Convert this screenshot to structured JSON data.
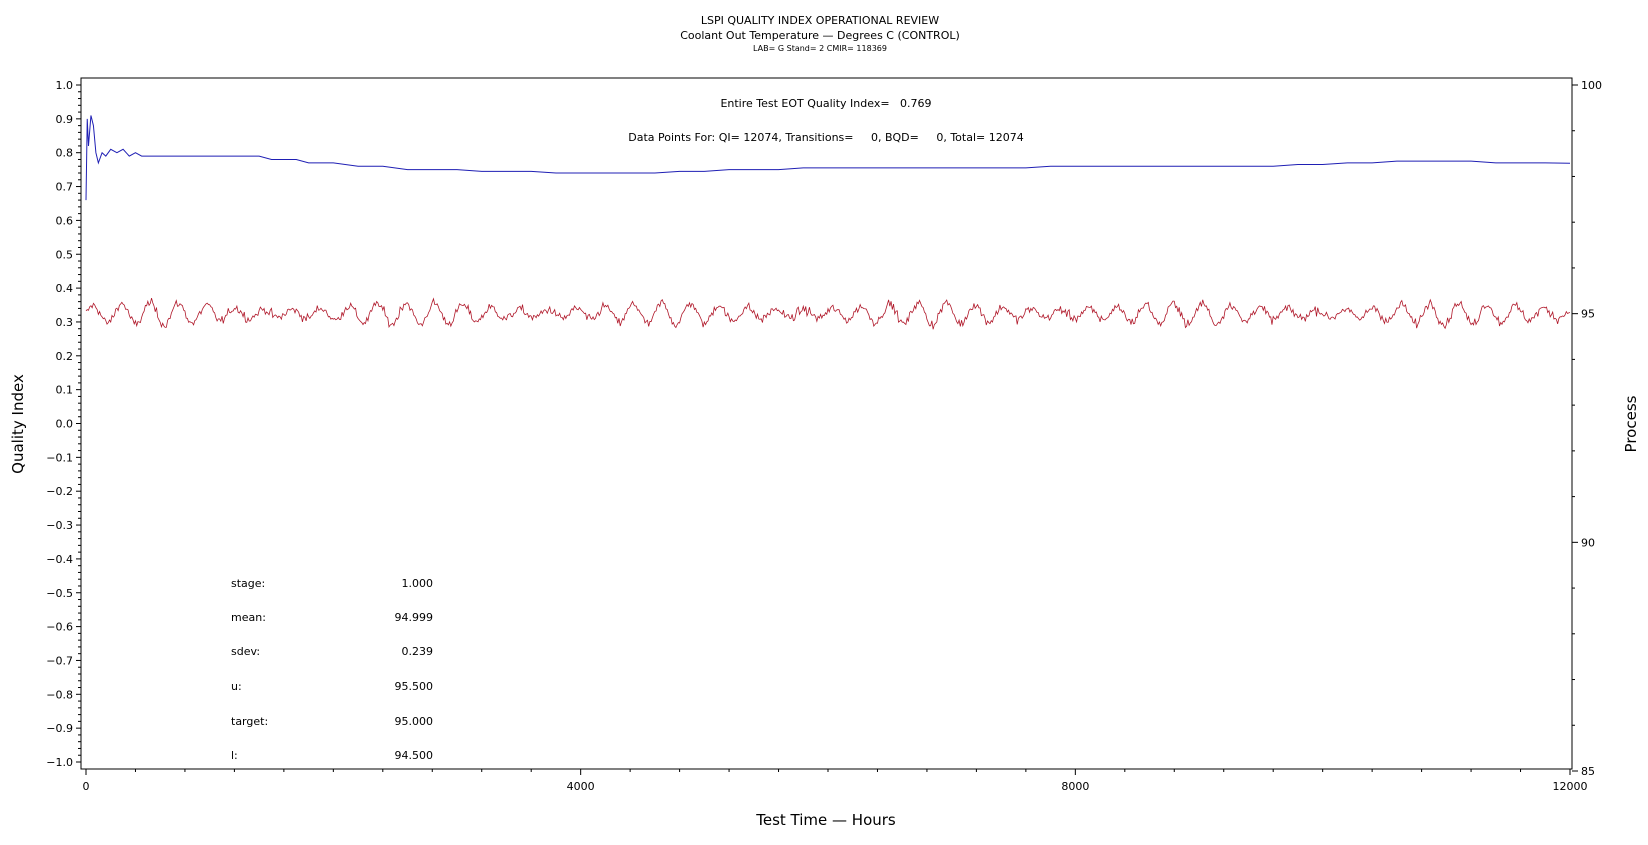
{
  "chart_data": {
    "type": "line",
    "title": "LSPI QUALITY INDEX OPERATIONAL REVIEW",
    "subtitle": "Coolant Out Temperature — Degrees C (CONTROL)",
    "subsubtitle": "LAB= G Stand= 2 CMIR= 118369",
    "xlabel": "Test Time — Hours",
    "ylabel": "Quality Index",
    "y2label": "Process",
    "xlim": [
      0,
      12000
    ],
    "ylim": [
      -1.0,
      1.0
    ],
    "y2lim": [
      85,
      100
    ],
    "x_ticks": [
      "0",
      "4000",
      "8000",
      "12000"
    ],
    "x_tick_values": [
      0,
      4000,
      8000,
      12000
    ],
    "y_ticks": [
      "1.0",
      "0.9",
      "0.8",
      "0.7",
      "0.6",
      "0.5",
      "0.4",
      "0.3",
      "0.2",
      "0.1",
      "0.0",
      "−0.1",
      "−0.2",
      "−0.3",
      "−0.4",
      "−0.5",
      "−0.6",
      "−0.7",
      "−0.8",
      "−0.9",
      "−1.0"
    ],
    "y_tick_values": [
      1.0,
      0.9,
      0.8,
      0.7,
      0.6,
      0.5,
      0.4,
      0.3,
      0.2,
      0.1,
      0.0,
      -0.1,
      -0.2,
      -0.3,
      -0.4,
      -0.5,
      -0.6,
      -0.7,
      -0.8,
      -0.9,
      -1.0
    ],
    "y2_ticks": [
      "100",
      "95",
      "90",
      "85"
    ],
    "y2_tick_values": [
      100,
      95,
      90,
      85
    ],
    "grid": false,
    "annotations": {
      "eot": "Entire Test EOT Quality Index=   0.769",
      "points": "Data Points For: QI= 12074, Transitions=     0, BQD=     0, Total= 12074"
    },
    "stats": [
      {
        "label": "stage:",
        "value": "1.000"
      },
      {
        "label": "mean:",
        "value": "94.999"
      },
      {
        "label": "sdev:",
        "value": "0.239"
      },
      {
        "label": "u:",
        "value": "95.500"
      },
      {
        "label": "target:",
        "value": "95.000"
      },
      {
        "label": "l:",
        "value": "94.500"
      }
    ],
    "series": [
      {
        "axis": "left",
        "color": "#1f1fb4",
        "x": [
          0,
          10,
          20,
          40,
          60,
          80,
          100,
          130,
          160,
          200,
          250,
          300,
          350,
          400,
          450,
          500,
          600,
          700,
          800,
          900,
          1000,
          1100,
          1200,
          1300,
          1400,
          1500,
          1600,
          1700,
          1800,
          1900,
          2000,
          2200,
          2400,
          2600,
          2800,
          3000,
          3200,
          3400,
          3600,
          3800,
          4000,
          4200,
          4400,
          4600,
          4800,
          5000,
          5200,
          5400,
          5600,
          5800,
          6000,
          6200,
          6400,
          6600,
          6800,
          7000,
          7200,
          7400,
          7600,
          7800,
          8000,
          8200,
          8400,
          8600,
          8800,
          9000,
          9200,
          9400,
          9600,
          9800,
          10000,
          10200,
          10400,
          10600,
          10800,
          11000,
          11200,
          11400,
          11600,
          11800,
          12000
        ],
        "y": [
          0.66,
          0.9,
          0.82,
          0.91,
          0.88,
          0.8,
          0.77,
          0.8,
          0.79,
          0.81,
          0.8,
          0.81,
          0.79,
          0.8,
          0.79,
          0.79,
          0.79,
          0.79,
          0.79,
          0.79,
          0.79,
          0.79,
          0.79,
          0.79,
          0.79,
          0.78,
          0.78,
          0.78,
          0.77,
          0.77,
          0.77,
          0.76,
          0.76,
          0.75,
          0.75,
          0.75,
          0.745,
          0.745,
          0.745,
          0.74,
          0.74,
          0.74,
          0.74,
          0.74,
          0.745,
          0.745,
          0.75,
          0.75,
          0.75,
          0.755,
          0.755,
          0.755,
          0.755,
          0.755,
          0.755,
          0.755,
          0.755,
          0.755,
          0.755,
          0.76,
          0.76,
          0.76,
          0.76,
          0.76,
          0.76,
          0.76,
          0.76,
          0.76,
          0.76,
          0.765,
          0.765,
          0.77,
          0.77,
          0.775,
          0.775,
          0.775,
          0.775,
          0.77,
          0.77,
          0.77,
          0.769
        ]
      },
      {
        "axis": "right",
        "color": "#b0182a",
        "x_range": [
          0,
          12000
        ],
        "x_step": 10,
        "center": 95.0,
        "cycle_hours": 230,
        "amplitude": 0.22,
        "noise_sd": 0.12,
        "min": 94.4,
        "max": 95.6
      }
    ]
  }
}
